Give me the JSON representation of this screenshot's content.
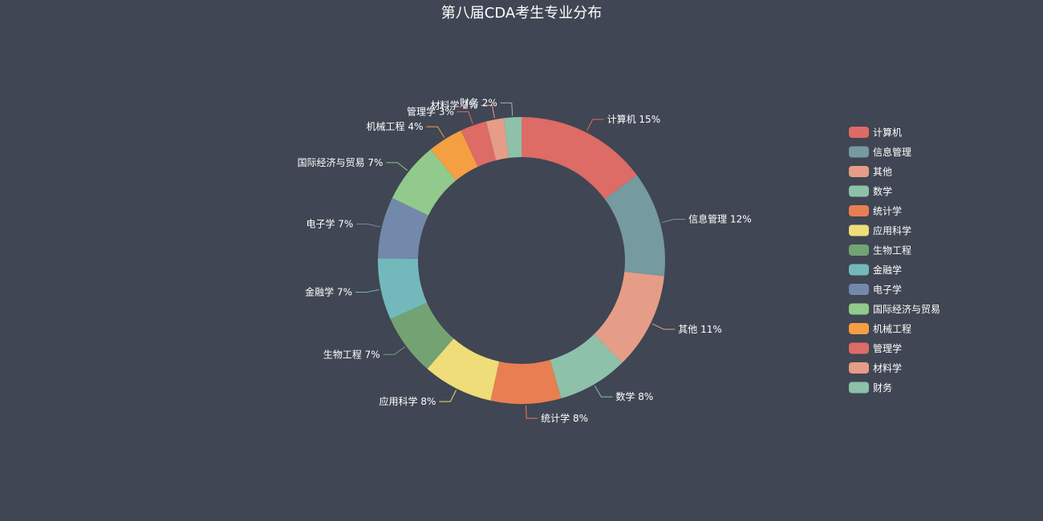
{
  "chart_data": {
    "type": "pie",
    "variant": "donut",
    "title": "第八届CDA考生专业分布",
    "legend_position": "right",
    "slices": [
      {
        "name": "计算机",
        "value": 15,
        "label": "计算机 15%",
        "color": "#dd6b66"
      },
      {
        "name": "信息管理",
        "value": 12,
        "label": "信息管理 12%",
        "color": "#759aa0"
      },
      {
        "name": "其他",
        "value": 11,
        "label": "其他 11%",
        "color": "#e69d87"
      },
      {
        "name": "数学",
        "value": 8,
        "label": "数学 8%",
        "color": "#8dc1a9"
      },
      {
        "name": "统计学",
        "value": 8,
        "label": "统计学 8%",
        "color": "#ea7e53"
      },
      {
        "name": "应用科学",
        "value": 8,
        "label": "应用科学 8%",
        "color": "#eedd78"
      },
      {
        "name": "生物工程",
        "value": 7,
        "label": "生物工程 7%",
        "color": "#73a373"
      },
      {
        "name": "金融学",
        "value": 7,
        "label": "金融学 7%",
        "color": "#73b9bc"
      },
      {
        "name": "电子学",
        "value": 7,
        "label": "电子学 7%",
        "color": "#7289ab"
      },
      {
        "name": "国际经济与贸易",
        "value": 7,
        "label": "国际经济与贸易 7%",
        "color": "#91ca8c"
      },
      {
        "name": "机械工程",
        "value": 4,
        "label": "机械工程 4%",
        "color": "#f49f42"
      },
      {
        "name": "管理学",
        "value": 3,
        "label": "管理学 3%",
        "color": "#dd6b66"
      },
      {
        "name": "材料学",
        "value": 2,
        "label": "材料学 2%",
        "color": "#e69d87"
      },
      {
        "name": "财务",
        "value": 2,
        "label": "财务 2%",
        "color": "#8dc1a9"
      }
    ]
  }
}
